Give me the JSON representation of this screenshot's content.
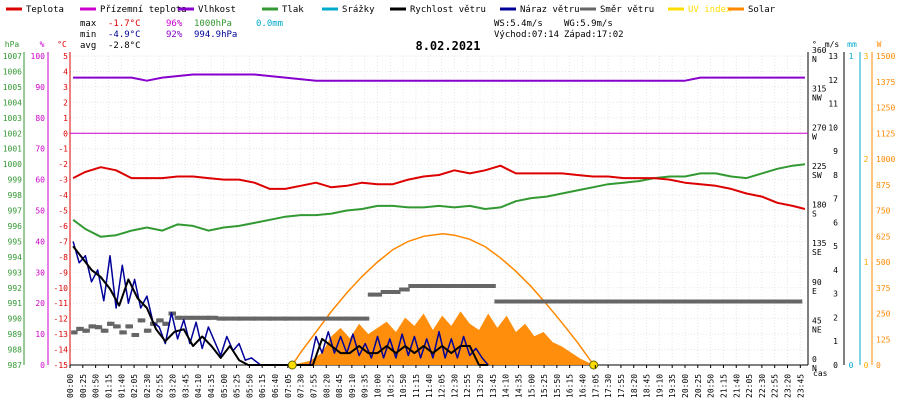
{
  "legend": [
    {
      "label": "Teplota",
      "color": "#dd0000"
    },
    {
      "label": "Přízemní teplota",
      "color": "#cc00cc"
    },
    {
      "label": "Vlhkost",
      "color": "#8800cc"
    },
    {
      "label": "Tlak",
      "color": "#339933"
    },
    {
      "label": "Srážky",
      "color": "#00aacc"
    },
    {
      "label": "Rychlost větru",
      "color": "#000000"
    },
    {
      "label": "Náraz větru",
      "color": "#000099"
    },
    {
      "label": "Směr větru",
      "color": "#666666"
    },
    {
      "label": "UV index",
      "color": "#ffdd00"
    },
    {
      "label": "Solar",
      "color": "#ff8800"
    }
  ],
  "stats": {
    "max_label": "max",
    "max_temp": "-1.7°C",
    "max_hum": "96%",
    "max_press": "1000hPa",
    "rain": "0.0mm",
    "min_label": "min",
    "min_temp": "-4.9°C",
    "min_hum": "92%",
    "min_press": "994.9hPa",
    "avg_label": "avg",
    "avg_temp": "-2.8°C",
    "ws": "WS:5.4m/s",
    "wg": "WG:5.9m/s",
    "sunrise": "Východ:07:14",
    "sunset": "Západ:17:02"
  },
  "chart_data": {
    "type": "line",
    "title": "8.02.2021",
    "x_unit": "čas",
    "xlim": [
      0,
      24
    ],
    "x_ticks": [
      "00:00",
      "00:25",
      "00:50",
      "01:15",
      "01:40",
      "02:05",
      "02:30",
      "02:55",
      "03:20",
      "03:45",
      "04:10",
      "04:35",
      "05:00",
      "05:25",
      "05:50",
      "06:15",
      "06:40",
      "07:05",
      "07:30",
      "07:55",
      "08:20",
      "08:45",
      "09:10",
      "09:35",
      "10:00",
      "10:25",
      "10:50",
      "11:15",
      "11:40",
      "12:05",
      "12:30",
      "12:55",
      "13:20",
      "13:45",
      "14:10",
      "14:35",
      "15:00",
      "15:25",
      "15:50",
      "16:15",
      "16:40",
      "17:05",
      "17:30",
      "17:55",
      "18:20",
      "18:45",
      "19:10",
      "19:35",
      "20:00",
      "20:25",
      "20:50",
      "21:15",
      "21:40",
      "22:05",
      "22:30",
      "22:55",
      "23:20",
      "23:45"
    ],
    "axes": {
      "hPa": {
        "unit": "hPa",
        "range": [
          987,
          1007
        ],
        "ticks": [
          987,
          988,
          989,
          990,
          991,
          992,
          993,
          994,
          995,
          996,
          997,
          998,
          999,
          1000,
          1001,
          1002,
          1003,
          1004,
          1005,
          1006,
          1007
        ],
        "color": "#339933"
      },
      "pct": {
        "unit": "%",
        "range": [
          0,
          100
        ],
        "ticks": [
          0,
          10,
          20,
          30,
          40,
          50,
          60,
          70,
          80,
          90,
          100
        ],
        "color": "#cc00cc"
      },
      "temp": {
        "unit": "°C",
        "range": [
          -15,
          5
        ],
        "ticks": [
          -15,
          -14,
          -13,
          -12,
          -11,
          -10,
          -9,
          -8,
          -7,
          -6,
          -5,
          -4,
          -3,
          -2,
          -1,
          0,
          1,
          2,
          3,
          4,
          5
        ],
        "color": "#dd0000"
      },
      "dir": {
        "unit": "°",
        "range": [
          0,
          360
        ],
        "ticks": [
          {
            "v": 0,
            "l": "0",
            "c": "N"
          },
          {
            "v": 45,
            "l": "45",
            "c": "NE"
          },
          {
            "v": 90,
            "l": "90",
            "c": "E"
          },
          {
            "v": 135,
            "l": "135",
            "c": "SE"
          },
          {
            "v": 180,
            "l": "180",
            "c": "S"
          },
          {
            "v": 225,
            "l": "225",
            "c": "SW"
          },
          {
            "v": 270,
            "l": "270",
            "c": "W"
          },
          {
            "v": 315,
            "l": "315",
            "c": "NW"
          },
          {
            "v": 360,
            "l": "360",
            "c": "N"
          }
        ],
        "color": "#000000"
      },
      "ms": {
        "unit": "m/s",
        "range": [
          0,
          13
        ],
        "ticks": [
          0,
          1,
          2,
          3,
          4,
          5,
          6,
          7,
          8,
          9,
          10,
          11,
          12,
          13
        ],
        "color": "#000000"
      },
      "mm": {
        "unit": "mm",
        "range": [
          0,
          1
        ],
        "ticks": [
          0,
          1
        ],
        "color": "#00aacc"
      },
      "uv": {
        "range": [
          0,
          3
        ],
        "ticks": [
          0,
          1,
          2,
          3
        ],
        "color": "#ffaa00"
      },
      "w": {
        "unit": "W",
        "range": [
          0,
          1500
        ],
        "ticks": [
          0,
          125,
          250,
          375,
          500,
          625,
          750,
          875,
          1000,
          1125,
          1250,
          1375,
          1500
        ],
        "color": "#ff8800"
      }
    },
    "series": [
      {
        "name": "Teplota",
        "axis": "temp",
        "color": "#dd0000",
        "x": [
          0.1,
          0.5,
          1.0,
          1.5,
          2.0,
          2.5,
          3.0,
          3.5,
          4.0,
          4.5,
          5.0,
          5.5,
          6.0,
          6.5,
          7.0,
          7.5,
          8.0,
          8.5,
          9.0,
          9.5,
          10.0,
          10.5,
          11.0,
          11.5,
          12.0,
          12.5,
          13.0,
          13.5,
          14.0,
          14.5,
          15.0,
          15.5,
          16.0,
          16.5,
          17.0,
          17.5,
          18.0,
          18.5,
          19.0,
          19.5,
          20.0,
          20.5,
          21.0,
          21.5,
          22.0,
          22.5,
          23.0,
          23.5,
          23.9
        ],
        "y": [
          -2.9,
          -2.5,
          -2.2,
          -2.4,
          -2.9,
          -2.9,
          -2.9,
          -2.8,
          -2.8,
          -2.9,
          -3.0,
          -3.0,
          -3.2,
          -3.6,
          -3.6,
          -3.4,
          -3.2,
          -3.5,
          -3.4,
          -3.2,
          -3.3,
          -3.3,
          -3.0,
          -2.8,
          -2.7,
          -2.4,
          -2.6,
          -2.4,
          -2.1,
          -2.6,
          -2.6,
          -2.6,
          -2.6,
          -2.7,
          -2.8,
          -2.8,
          -2.9,
          -2.9,
          -2.9,
          -3.0,
          -3.2,
          -3.3,
          -3.4,
          -3.6,
          -3.9,
          -4.1,
          -4.5,
          -4.7,
          -4.9
        ]
      },
      {
        "name": "Přízemní teplota",
        "axis": "temp",
        "color": "#cc00cc",
        "x": [
          0,
          24
        ],
        "y": [
          0,
          0
        ]
      },
      {
        "name": "Vlhkost",
        "axis": "pct",
        "color": "#8800cc",
        "x": [
          0.1,
          1.0,
          2.0,
          2.5,
          3.0,
          4.0,
          5.0,
          6.0,
          7.0,
          8.0,
          9.0,
          10.0,
          11.0,
          12.0,
          13.0,
          14.0,
          15.0,
          16.0,
          17.0,
          18.0,
          19.0,
          20.0,
          20.5,
          21.0,
          22.0,
          23.0,
          23.9
        ],
        "y": [
          93,
          93,
          93,
          92,
          93,
          94,
          94,
          94,
          93,
          92,
          92,
          92,
          92,
          92,
          92,
          92,
          92,
          92,
          92,
          92,
          92,
          92,
          93,
          93,
          93,
          93,
          93
        ]
      },
      {
        "name": "Tlak",
        "axis": "hPa",
        "color": "#339933",
        "x": [
          0.1,
          0.5,
          1.0,
          1.5,
          2.0,
          2.5,
          3.0,
          3.5,
          4.0,
          4.5,
          5.0,
          5.5,
          6.0,
          6.5,
          7.0,
          7.5,
          8.0,
          8.5,
          9.0,
          9.5,
          10.0,
          10.5,
          11.0,
          11.5,
          12.0,
          12.5,
          13.0,
          13.5,
          14.0,
          14.5,
          15.0,
          15.5,
          16.0,
          16.5,
          17.0,
          17.5,
          18.0,
          18.5,
          19.0,
          19.5,
          20.0,
          20.5,
          21.0,
          21.5,
          22.0,
          22.5,
          23.0,
          23.5,
          23.9
        ],
        "y": [
          996.4,
          995.8,
          995.3,
          995.4,
          995.7,
          995.9,
          995.7,
          996.1,
          996.0,
          995.7,
          995.9,
          996.0,
          996.2,
          996.4,
          996.6,
          996.7,
          996.7,
          996.8,
          997.0,
          997.1,
          997.3,
          997.3,
          997.2,
          997.2,
          997.3,
          997.2,
          997.3,
          997.1,
          997.2,
          997.6,
          997.8,
          997.9,
          998.1,
          998.3,
          998.5,
          998.7,
          998.8,
          998.9,
          999.1,
          999.2,
          999.2,
          999.4,
          999.4,
          999.2,
          999.1,
          999.4,
          999.7,
          999.9,
          1000.0
        ]
      },
      {
        "name": "Srážky",
        "axis": "mm",
        "color": "#00aacc",
        "x": [
          0,
          24
        ],
        "y": [
          0,
          0
        ]
      },
      {
        "name": "Rychlost větru",
        "axis": "ms",
        "color": "#000000",
        "x": [
          0.1,
          0.4,
          0.7,
          1.0,
          1.3,
          1.6,
          1.9,
          2.2,
          2.5,
          2.8,
          3.1,
          3.4,
          3.7,
          4.0,
          4.3,
          4.6,
          4.9,
          5.2,
          5.5,
          5.8,
          6.1,
          6.4,
          6.7,
          7.0,
          7.5,
          7.9,
          8.2,
          8.5,
          8.8,
          9.1,
          9.4,
          9.7,
          10.0,
          10.3,
          10.6,
          10.9,
          11.2,
          11.5,
          11.8,
          12.1,
          12.4,
          12.7,
          13.0,
          13.3,
          13.6
        ],
        "y": [
          5.0,
          4.5,
          4.0,
          3.7,
          3.2,
          2.5,
          3.6,
          2.8,
          2.4,
          1.5,
          1.0,
          1.4,
          1.5,
          0.8,
          1.2,
          0.8,
          0.3,
          0.8,
          0.2,
          0,
          0,
          0,
          0,
          0,
          0,
          0,
          1.1,
          0.8,
          0.5,
          0.5,
          0.8,
          0.5,
          0.5,
          0.8,
          0.5,
          0.8,
          0.5,
          0.8,
          0.5,
          0.8,
          0.5,
          0.8,
          0.8,
          0,
          0
        ]
      },
      {
        "name": "Náraz větru",
        "axis": "ms",
        "color": "#000099",
        "x": [
          0.1,
          0.3,
          0.5,
          0.7,
          0.9,
          1.1,
          1.3,
          1.5,
          1.7,
          1.9,
          2.1,
          2.3,
          2.5,
          2.7,
          2.9,
          3.1,
          3.3,
          3.5,
          3.7,
          3.9,
          4.1,
          4.3,
          4.5,
          4.7,
          4.9,
          5.1,
          5.3,
          5.5,
          5.7,
          5.9,
          6.2,
          7.0,
          7.8,
          8.0,
          8.2,
          8.4,
          8.6,
          8.8,
          9.0,
          9.2,
          9.4,
          9.6,
          9.8,
          10.0,
          10.2,
          10.4,
          10.6,
          10.8,
          11.0,
          11.2,
          11.4,
          11.6,
          11.8,
          12.0,
          12.2,
          12.4,
          12.6,
          12.8,
          13.0,
          13.2,
          13.4,
          13.6
        ],
        "y": [
          5.2,
          4.3,
          4.6,
          3.5,
          4.0,
          2.7,
          4.6,
          2.4,
          4.2,
          2.6,
          3.6,
          2.4,
          2.9,
          1.8,
          1.6,
          0.9,
          2.2,
          1.1,
          1.9,
          0.9,
          1.8,
          0.7,
          1.6,
          1.0,
          0.4,
          1.2,
          0.6,
          0.9,
          0.2,
          0.3,
          0,
          0,
          0,
          1.2,
          0.5,
          1.4,
          0.5,
          1.2,
          0.5,
          1.3,
          0.4,
          0.9,
          0.3,
          1.2,
          0.3,
          1.1,
          0.3,
          1.3,
          0.4,
          1.2,
          0.3,
          1.1,
          0.3,
          1.4,
          0.3,
          1.1,
          0.3,
          1.2,
          0.4,
          0.7,
          0.3,
          0
        ]
      },
      {
        "name": "Směr větru",
        "axis": "dir",
        "color": "#666666",
        "x": [
          0.1,
          0.3,
          0.5,
          0.7,
          0.9,
          1.1,
          1.3,
          1.5,
          1.7,
          1.9,
          2.1,
          2.3,
          2.5,
          2.7,
          2.9,
          3.1,
          3.3,
          3.6,
          4.0,
          4.5,
          5.0,
          5.5,
          6.0,
          6.5,
          7.0,
          7.8,
          8.3,
          9.0,
          9.5,
          10.0,
          10.3,
          10.6,
          10.9,
          11.2,
          11.5,
          12.0,
          12.5,
          13.0,
          13.4,
          13.7,
          14.0,
          15.0,
          16.0,
          17.0,
          18.0,
          19.0,
          20.0,
          21.0,
          22.0,
          23.0,
          23.8
        ],
        "y": [
          38,
          42,
          40,
          45,
          44,
          40,
          48,
          45,
          38,
          45,
          35,
          52,
          40,
          48,
          52,
          48,
          60,
          55,
          55,
          55,
          54,
          54,
          54,
          54,
          54,
          54,
          54,
          54,
          54,
          82,
          85,
          85,
          88,
          92,
          92,
          92,
          92,
          92,
          92,
          92,
          74,
          74,
          74,
          74,
          74,
          74,
          74,
          74,
          74,
          74,
          74
        ]
      },
      {
        "name": "UV index",
        "axis": "uv",
        "color": "#ffdd00",
        "x": [
          7.23,
          17.03
        ],
        "y": [
          0,
          0
        ]
      },
      {
        "name": "Solar",
        "axis": "w",
        "color": "#ff8800",
        "x": [
          7.23,
          7.8,
          8.2,
          8.5,
          8.8,
          9.1,
          9.4,
          9.7,
          10.0,
          10.3,
          10.6,
          10.9,
          11.2,
          11.5,
          11.8,
          12.1,
          12.4,
          12.7,
          13.0,
          13.3,
          13.6,
          13.9,
          14.2,
          14.5,
          14.8,
          15.1,
          15.4,
          15.7,
          16.0,
          16.3,
          16.6,
          17.03
        ],
        "y": [
          0,
          20,
          60,
          140,
          180,
          130,
          200,
          150,
          180,
          210,
          160,
          230,
          190,
          250,
          170,
          240,
          190,
          260,
          200,
          170,
          250,
          180,
          240,
          160,
          200,
          140,
          160,
          110,
          90,
          60,
          30,
          0
        ]
      },
      {
        "name": "Solar (theoretical)",
        "axis": "w",
        "color": "#ff8800",
        "x": [
          7.23,
          7.5,
          8.0,
          8.5,
          9.0,
          9.5,
          10.0,
          10.5,
          11.0,
          11.5,
          12.0,
          12.13,
          12.5,
          13.0,
          13.5,
          14.0,
          14.5,
          15.0,
          15.5,
          16.0,
          16.5,
          17.03
        ],
        "y": [
          0,
          60,
          160,
          260,
          350,
          430,
          500,
          560,
          600,
          625,
          635,
          637,
          630,
          610,
          575,
          520,
          455,
          380,
          295,
          205,
          110,
          0
        ]
      }
    ]
  }
}
